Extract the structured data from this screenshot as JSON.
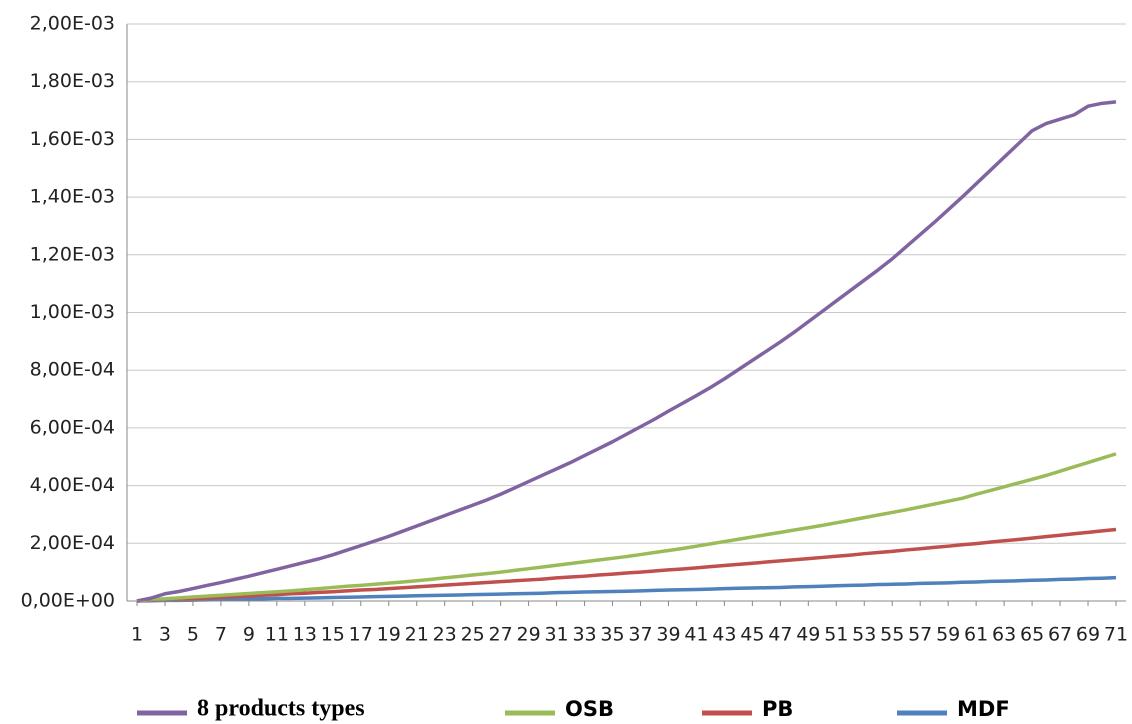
{
  "chart_data": {
    "type": "line",
    "x": [
      1,
      2,
      3,
      4,
      5,
      6,
      7,
      8,
      9,
      10,
      11,
      12,
      13,
      14,
      15,
      16,
      17,
      18,
      19,
      20,
      21,
      22,
      23,
      24,
      25,
      26,
      27,
      28,
      29,
      30,
      31,
      32,
      33,
      34,
      35,
      36,
      37,
      38,
      39,
      40,
      41,
      42,
      43,
      44,
      45,
      46,
      47,
      48,
      49,
      50,
      51,
      52,
      53,
      54,
      55,
      56,
      57,
      58,
      59,
      60,
      61,
      62,
      63,
      64,
      65,
      66,
      67,
      68,
      69,
      70,
      71
    ],
    "xlim": [
      1,
      71
    ],
    "xticks": [
      1,
      3,
      5,
      7,
      9,
      11,
      13,
      15,
      17,
      19,
      21,
      23,
      25,
      27,
      29,
      31,
      33,
      35,
      37,
      39,
      41,
      43,
      45,
      47,
      49,
      51,
      53,
      55,
      57,
      59,
      61,
      63,
      65,
      67,
      69,
      71
    ],
    "ylim": [
      0,
      0.002
    ],
    "yticks": [
      {
        "value": 0,
        "label": "0,00E+00"
      },
      {
        "value": 0.0002,
        "label": "2,00E-04"
      },
      {
        "value": 0.0004,
        "label": "4,00E-04"
      },
      {
        "value": 0.0006,
        "label": "6,00E-04"
      },
      {
        "value": 0.0008,
        "label": "8,00E-04"
      },
      {
        "value": 0.001,
        "label": "1,00E-03"
      },
      {
        "value": 0.0012,
        "label": "1,20E-03"
      },
      {
        "value": 0.0014,
        "label": "1,40E-03"
      },
      {
        "value": 0.0016,
        "label": "1,60E-03"
      },
      {
        "value": 0.0018,
        "label": "1,80E-03"
      },
      {
        "value": 0.002,
        "label": "2,00E-03"
      }
    ],
    "grid": true,
    "legend": "bottom",
    "series": [
      {
        "name": "8 products types",
        "color": "#8064a2",
        "values": [
          0,
          1e-05,
          2.5e-05,
          3.3e-05,
          4.3e-05,
          5.4e-05,
          6.4e-05,
          7.5e-05,
          8.6e-05,
          9.8e-05,
          0.00011,
          0.000122,
          0.000134,
          0.000146,
          0.00016,
          0.000176,
          0.000192,
          0.000208,
          0.000224,
          0.000242,
          0.00026,
          0.000278,
          0.000296,
          0.000314,
          0.000332,
          0.00035,
          0.00037,
          0.000392,
          0.000414,
          0.000436,
          0.000458,
          0.00048,
          0.000504,
          0.000528,
          0.000552,
          0.000578,
          0.000604,
          0.00063,
          0.000658,
          0.000685,
          0.000712,
          0.00074,
          0.00077,
          0.000802,
          0.000834,
          0.000866,
          0.000898,
          0.000932,
          0.000968,
          0.001004,
          0.00104,
          0.001076,
          0.001112,
          0.001148,
          0.001186,
          0.001228,
          0.00127,
          0.001312,
          0.001356,
          0.0014,
          0.001446,
          0.001492,
          0.001538,
          0.001584,
          0.00163,
          0.001655,
          0.00167,
          0.001685,
          0.001715,
          0.001725,
          0.00173
        ]
      },
      {
        "name": "OSB",
        "color": "#9bbb59",
        "values": [
          0,
          4e-06,
          8e-06,
          1.1e-05,
          1.4e-05,
          1.7e-05,
          2e-05,
          2.3e-05,
          2.6e-05,
          2.9e-05,
          3.2e-05,
          3.5e-05,
          3.9e-05,
          4.3e-05,
          4.7e-05,
          5.1e-05,
          5.4e-05,
          5.8e-05,
          6.2e-05,
          6.6e-05,
          7e-05,
          7.5e-05,
          8e-05,
          8.5e-05,
          9e-05,
          9.5e-05,
          0.0001,
          0.000106,
          0.000112,
          0.000118,
          0.000124,
          0.00013,
          0.000136,
          0.000142,
          0.000148,
          0.000154,
          0.000161,
          0.000168,
          0.000175,
          0.000182,
          0.00019,
          0.000198,
          0.000206,
          0.000214,
          0.000222,
          0.00023,
          0.000238,
          0.000246,
          0.000254,
          0.000262,
          0.000271,
          0.00028,
          0.000289,
          0.000298,
          0.000307,
          0.000316,
          0.000326,
          0.000336,
          0.000346,
          0.000356,
          0.00037,
          0.000383,
          0.000396,
          0.000409,
          0.000422,
          0.000435,
          0.00045,
          0.000465,
          0.00048,
          0.000495,
          0.00051
        ]
      },
      {
        "name": "PB",
        "color": "#c0504d",
        "values": [
          0,
          2e-06,
          4e-06,
          6e-06,
          8e-06,
          1.1e-05,
          1.3e-05,
          1.5e-05,
          1.7e-05,
          2e-05,
          2.2e-05,
          2.5e-05,
          2.7e-05,
          3e-05,
          3.2e-05,
          3.5e-05,
          3.8e-05,
          4e-05,
          4.3e-05,
          4.6e-05,
          4.9e-05,
          5.2e-05,
          5.5e-05,
          5.8e-05,
          6.1e-05,
          6.4e-05,
          6.7e-05,
          7e-05,
          7.3e-05,
          7.6e-05,
          8e-05,
          8.3e-05,
          8.6e-05,
          9e-05,
          9.3e-05,
          9.7e-05,
          0.0001,
          0.000104,
          0.000108,
          0.000111,
          0.000115,
          0.000119,
          0.000123,
          0.000127,
          0.000131,
          0.000135,
          0.000139,
          0.000143,
          0.000147,
          0.000151,
          0.000155,
          0.000159,
          0.000164,
          0.000168,
          0.000172,
          0.000177,
          0.000181,
          0.000186,
          0.00019,
          0.000195,
          0.000199,
          0.000204,
          0.000209,
          0.000213,
          0.000218,
          0.000223,
          0.000228,
          0.000233,
          0.000238,
          0.000243,
          0.000248
        ]
      },
      {
        "name": "MDF",
        "color": "#4f81bd",
        "values": [
          0,
          1e-06,
          2e-06,
          2e-06,
          3e-06,
          4e-06,
          5e-06,
          6e-06,
          7e-06,
          8e-06,
          9e-06,
          9e-06,
          1e-05,
          1.1e-05,
          1.2e-05,
          1.3e-05,
          1.4e-05,
          1.5e-05,
          1.6e-05,
          1.7e-05,
          1.8e-05,
          1.9e-05,
          2e-05,
          2.1e-05,
          2.2e-05,
          2.3e-05,
          2.4e-05,
          2.5e-05,
          2.6e-05,
          2.7e-05,
          2.9e-05,
          3e-05,
          3.1e-05,
          3.2e-05,
          3.3e-05,
          3.4e-05,
          3.5e-05,
          3.7e-05,
          3.8e-05,
          3.9e-05,
          4e-05,
          4.1e-05,
          4.3e-05,
          4.4e-05,
          4.5e-05,
          4.6e-05,
          4.7e-05,
          4.9e-05,
          5e-05,
          5.1e-05,
          5.3e-05,
          5.4e-05,
          5.5e-05,
          5.7e-05,
          5.8e-05,
          5.9e-05,
          6.1e-05,
          6.2e-05,
          6.3e-05,
          6.5e-05,
          6.6e-05,
          6.8e-05,
          6.9e-05,
          7e-05,
          7.2e-05,
          7.3e-05,
          7.5e-05,
          7.6e-05,
          7.8e-05,
          7.9e-05,
          8.1e-05
        ]
      }
    ]
  }
}
